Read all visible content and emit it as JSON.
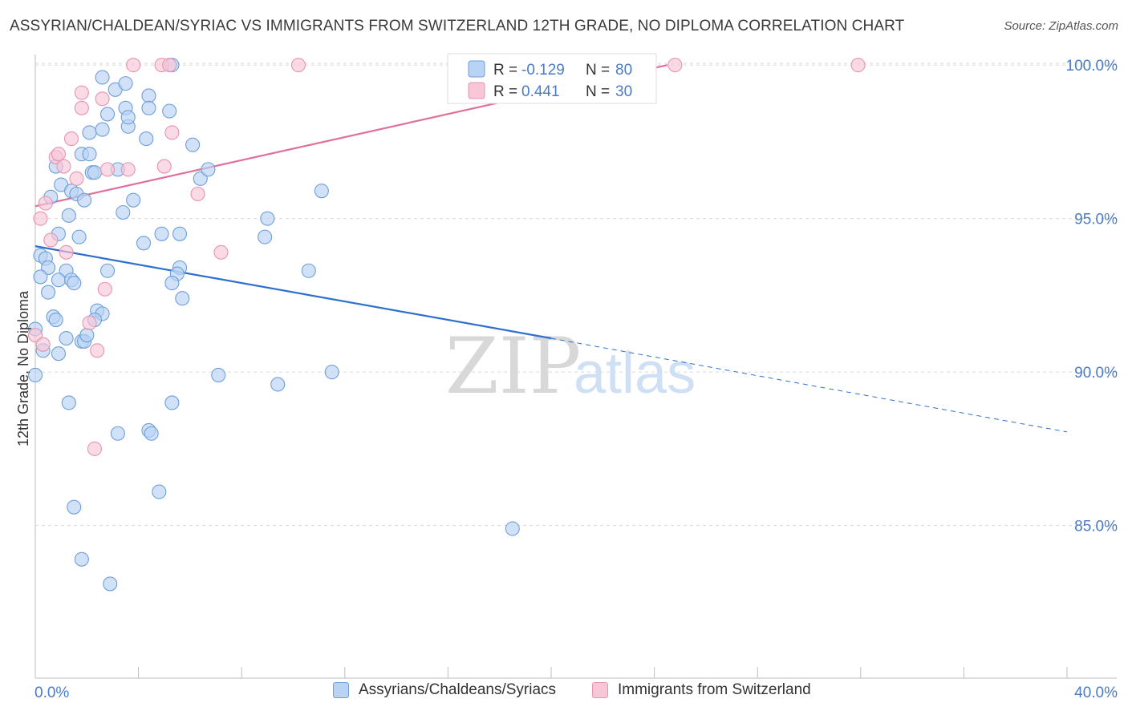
{
  "title": "ASSYRIAN/CHALDEAN/SYRIAC VS IMMIGRANTS FROM SWITZERLAND 12TH GRADE, NO DIPLOMA CORRELATION CHART",
  "source": "Source: ZipAtlas.com",
  "watermark": {
    "zip": "ZIP",
    "atlas": "atlas"
  },
  "colors": {
    "blue_fill": "#b9d3f5",
    "blue_stroke": "#6e9fd8",
    "blue_line": "#2f6fce",
    "pink_fill": "#f8c6d6",
    "pink_stroke": "#e893b0",
    "pink_line": "#e0709a",
    "axis_label": "#4a7bc8",
    "grid": "#d9d9d9"
  },
  "legend_top": {
    "rows": [
      {
        "r_label": "R = ",
        "r_value": "-0.129",
        "n_label": "N = ",
        "n_value": "80",
        "series": "blue"
      },
      {
        "r_label": "R = ",
        "r_value": "0.441",
        "n_label": "N = ",
        "n_value": "30",
        "series": "pink"
      }
    ]
  },
  "chart_data": {
    "type": "scatter",
    "title": "ASSYRIAN/CHALDEAN/SYRIAC VS IMMIGRANTS FROM SWITZERLAND 12TH GRADE, NO DIPLOMA CORRELATION CHART",
    "xlabel": "",
    "ylabel": "12th Grade, No Diploma",
    "xlim": [
      0,
      40
    ],
    "ylim": [
      80.5,
      100.5
    ],
    "x_tick_labels": [
      "0.0%",
      "40.0%"
    ],
    "y_ticks": [
      85,
      90,
      95,
      100
    ],
    "y_tick_labels": [
      "85.0%",
      "90.0%",
      "95.0%",
      "100.0%"
    ],
    "grid": true,
    "legend": [
      "Assyrians/Chaldeans/Syriacs",
      "Immigrants from Switzerland"
    ],
    "series": [
      {
        "name": "Assyrians/Chaldeans/Syriacs",
        "color": "blue",
        "trend": {
          "x0": 0.0,
          "y0": 94.1,
          "x1": 20.0,
          "y1": 91.1,
          "dash_to_x": 40.0,
          "dash_to_y": 88.05
        },
        "points": [
          [
            2.6,
            99.6
          ],
          [
            3.1,
            99.2
          ],
          [
            3.5,
            99.4
          ],
          [
            4.4,
            99.0
          ],
          [
            5.3,
            100.0
          ],
          [
            2.8,
            98.4
          ],
          [
            3.5,
            98.6
          ],
          [
            4.4,
            98.6
          ],
          [
            5.2,
            98.5
          ],
          [
            2.1,
            97.8
          ],
          [
            2.6,
            97.9
          ],
          [
            3.6,
            98.0
          ],
          [
            3.6,
            98.3
          ],
          [
            6.1,
            97.4
          ],
          [
            1.8,
            97.1
          ],
          [
            2.1,
            97.1
          ],
          [
            0.8,
            96.7
          ],
          [
            2.2,
            96.5
          ],
          [
            2.3,
            96.5
          ],
          [
            3.2,
            96.6
          ],
          [
            6.4,
            96.3
          ],
          [
            6.7,
            96.6
          ],
          [
            1.0,
            96.1
          ],
          [
            1.4,
            95.9
          ],
          [
            0.6,
            95.7
          ],
          [
            1.6,
            95.8
          ],
          [
            1.9,
            95.6
          ],
          [
            3.8,
            95.6
          ],
          [
            11.1,
            95.9
          ],
          [
            3.4,
            95.2
          ],
          [
            1.3,
            95.1
          ],
          [
            9.0,
            95.0
          ],
          [
            0.9,
            94.5
          ],
          [
            1.7,
            94.4
          ],
          [
            4.9,
            94.5
          ],
          [
            5.6,
            94.5
          ],
          [
            4.2,
            94.2
          ],
          [
            8.9,
            94.4
          ],
          [
            0.2,
            93.8
          ],
          [
            0.4,
            93.7
          ],
          [
            0.5,
            93.4
          ],
          [
            1.2,
            93.3
          ],
          [
            2.8,
            93.3
          ],
          [
            5.6,
            93.4
          ],
          [
            5.5,
            93.2
          ],
          [
            10.6,
            93.3
          ],
          [
            0.2,
            93.1
          ],
          [
            0.9,
            93.0
          ],
          [
            1.4,
            93.0
          ],
          [
            1.5,
            92.9
          ],
          [
            5.3,
            92.9
          ],
          [
            0.5,
            92.6
          ],
          [
            5.7,
            92.4
          ],
          [
            2.4,
            92.0
          ],
          [
            2.6,
            91.9
          ],
          [
            0.7,
            91.8
          ],
          [
            0.8,
            91.7
          ],
          [
            2.3,
            91.7
          ],
          [
            1.2,
            91.1
          ],
          [
            1.8,
            91.0
          ],
          [
            1.9,
            91.0
          ],
          [
            2.0,
            91.2
          ],
          [
            0.3,
            90.7
          ],
          [
            0.9,
            90.6
          ],
          [
            0.0,
            89.9
          ],
          [
            7.1,
            89.9
          ],
          [
            11.5,
            90.0
          ],
          [
            9.4,
            89.6
          ],
          [
            1.3,
            89.0
          ],
          [
            5.3,
            89.0
          ],
          [
            3.2,
            88.0
          ],
          [
            4.4,
            88.1
          ],
          [
            4.5,
            88.0
          ],
          [
            4.8,
            86.1
          ],
          [
            1.5,
            85.6
          ],
          [
            18.5,
            84.9
          ],
          [
            1.8,
            83.9
          ],
          [
            2.9,
            83.1
          ],
          [
            0.0,
            91.4
          ],
          [
            4.3,
            97.6
          ]
        ]
      },
      {
        "name": "Immigrants from Switzerland",
        "color": "pink",
        "trend": {
          "x0": 0.0,
          "y0": 95.4,
          "x1": 24.5,
          "y1": 100.0
        },
        "points": [
          [
            3.8,
            100.0
          ],
          [
            4.9,
            100.0
          ],
          [
            5.2,
            100.0
          ],
          [
            10.2,
            100.0
          ],
          [
            24.8,
            100.0
          ],
          [
            31.9,
            100.0
          ],
          [
            1.8,
            99.1
          ],
          [
            2.6,
            98.9
          ],
          [
            1.8,
            98.6
          ],
          [
            5.3,
            97.8
          ],
          [
            1.4,
            97.6
          ],
          [
            0.8,
            97.0
          ],
          [
            0.9,
            97.1
          ],
          [
            1.1,
            96.7
          ],
          [
            2.8,
            96.6
          ],
          [
            3.6,
            96.6
          ],
          [
            5.0,
            96.7
          ],
          [
            1.6,
            96.3
          ],
          [
            6.3,
            95.8
          ],
          [
            0.4,
            95.5
          ],
          [
            0.2,
            95.0
          ],
          [
            0.6,
            94.3
          ],
          [
            1.2,
            93.9
          ],
          [
            7.2,
            93.9
          ],
          [
            2.7,
            92.7
          ],
          [
            2.1,
            91.6
          ],
          [
            0.0,
            91.2
          ],
          [
            2.4,
            90.7
          ],
          [
            2.3,
            87.5
          ],
          [
            0.3,
            90.9
          ]
        ]
      }
    ]
  },
  "legend_bottom": [
    {
      "label": "Assyrians/Chaldeans/Syriacs",
      "series": "blue"
    },
    {
      "label": "Immigrants from Switzerland",
      "series": "pink"
    }
  ]
}
